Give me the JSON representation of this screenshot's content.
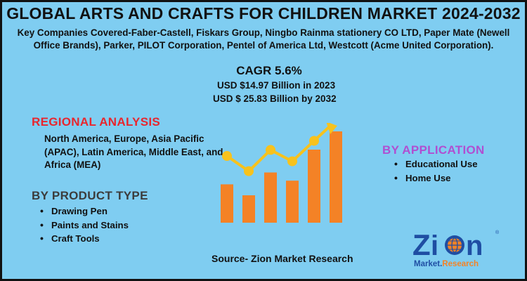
{
  "title": "GLOBAL ARTS AND CRAFTS FOR CHILDREN MARKET 2024-2032",
  "companies": "Key Companies Covered-Faber-Castell, Fiskars Group, Ningbo Rainma stationery CO LTD, Paper Mate (Newell Office Brands), Parker, PILOT Corporation, Pentel of America Ltd, Westcott (Acme United Corporation).",
  "cagr": "CAGR 5.6%",
  "value_2023": "USD $14.97 Billion in 2023",
  "value_2032": "USD $ 25.83 Billion by 2032",
  "regional": {
    "heading": "REGIONAL ANALYSIS",
    "text": "North America, Europe, Asia Pacific (APAC), Latin America, Middle East, and Africa (MEA)"
  },
  "product_type": {
    "heading": "BY PRODUCT TYPE",
    "items": [
      "Drawing Pen",
      "Paints and Stains",
      "Craft Tools"
    ]
  },
  "application": {
    "heading": "BY APPLICATION",
    "items": [
      "Educational Use",
      "Home Use"
    ]
  },
  "source": "Source- Zion Market Research",
  "logo": {
    "name": "Zion",
    "tagline": "Market Research"
  },
  "colors": {
    "background": "#7fcdf1",
    "bars": "#f48226",
    "line": "#f7c21d",
    "regional_heading": "#e8262e",
    "application_heading": "#b04fd1",
    "logo_blue": "#1f4ea3",
    "logo_orange": "#f48226"
  },
  "illustration": {
    "bar_levels": [
      0.42,
      0.3,
      0.55,
      0.46,
      0.8,
      1.0
    ],
    "trend_levels": [
      0.62,
      0.42,
      0.7,
      0.55,
      0.82,
      1.0
    ]
  }
}
